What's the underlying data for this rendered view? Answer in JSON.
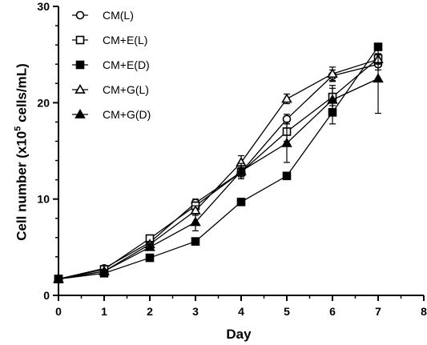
{
  "chart_data": {
    "type": "line",
    "xlabel": "Day",
    "ylabel_prefix": "Cell number (x10",
    "ylabel_sup": "5",
    "ylabel_suffix": " cells/mL)",
    "xlim": [
      0,
      8
    ],
    "ylim": [
      0,
      30
    ],
    "x_ticks": [
      "0",
      "1",
      "2",
      "3",
      "4",
      "5",
      "6",
      "7",
      "8"
    ],
    "y_ticks": [
      "0",
      "10",
      "20",
      "30"
    ],
    "grid": false,
    "legend_position": "top-left",
    "x": [
      0,
      1,
      2,
      3,
      4,
      5,
      6,
      7
    ],
    "series": [
      {
        "name": "CM(L)",
        "marker": "circle-open",
        "values": [
          1.7,
          2.8,
          5.5,
          9.6,
          12.8,
          18.3,
          22.8,
          24.0
        ],
        "errors": [
          0.1,
          0.2,
          0.3,
          0.4,
          0.5,
          0.5,
          0.6,
          0.6
        ]
      },
      {
        "name": "CM+E(L)",
        "marker": "square-open",
        "values": [
          1.7,
          2.7,
          5.9,
          9.3,
          12.8,
          17.0,
          20.6,
          24.6
        ],
        "errors": [
          0.1,
          0.2,
          0.3,
          0.4,
          0.7,
          1.0,
          0.9,
          0.5
        ]
      },
      {
        "name": "CM+E(D)",
        "marker": "square-filled",
        "values": [
          1.7,
          2.3,
          3.9,
          5.6,
          9.7,
          12.4,
          19.0,
          25.8
        ],
        "errors": [
          0.1,
          0.1,
          0.2,
          0.3,
          0.2,
          0.3,
          1.2,
          0.3
        ]
      },
      {
        "name": "CM+G(L)",
        "marker": "triangle-open",
        "values": [
          1.7,
          2.5,
          5.3,
          8.8,
          13.8,
          20.4,
          23.0,
          24.5
        ],
        "errors": [
          0.1,
          0.2,
          0.3,
          0.5,
          0.7,
          0.5,
          0.7,
          0.5
        ]
      },
      {
        "name": "CM+G(D)",
        "marker": "triangle-filled",
        "values": [
          1.7,
          2.5,
          5.0,
          7.6,
          12.9,
          15.8,
          20.3,
          22.5
        ],
        "errors": [
          0.1,
          0.2,
          0.3,
          0.9,
          0.8,
          2.0,
          1.5,
          3.6
        ]
      }
    ]
  }
}
